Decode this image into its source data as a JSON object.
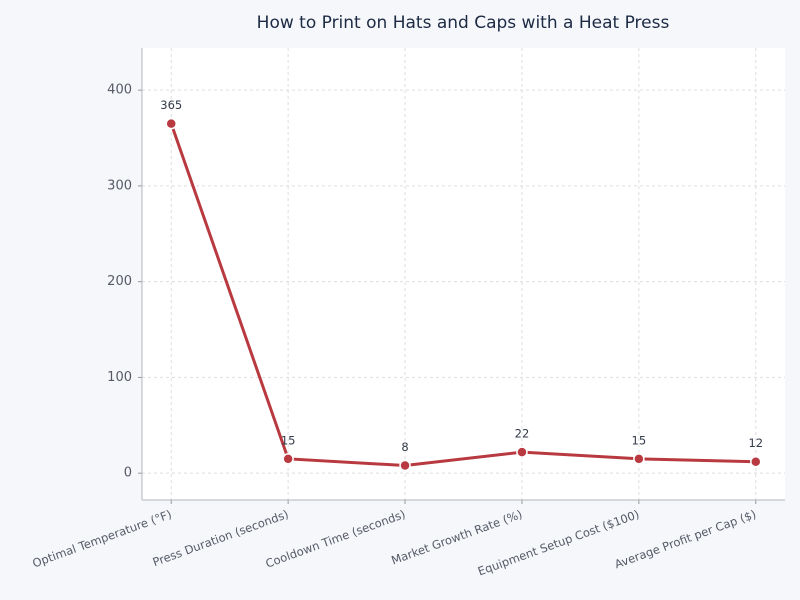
{
  "chart_data": {
    "type": "line",
    "title": "How to Print on Hats and Caps with a Heat Press",
    "categories": [
      "Optimal Temperature (°F)",
      "Press Duration (seconds)",
      "Cooldown Time (seconds)",
      "Market Growth Rate (%)",
      "Equipment Setup Cost ($100)",
      "Average Profit per Cap ($)"
    ],
    "series": [
      {
        "color": "#b83a40",
        "values": [
          365,
          15,
          8,
          22,
          15,
          12
        ]
      }
    ],
    "ylim": [
      -28,
      444
    ],
    "yticks": [
      0,
      100,
      200,
      300,
      400
    ],
    "grid": true
  }
}
